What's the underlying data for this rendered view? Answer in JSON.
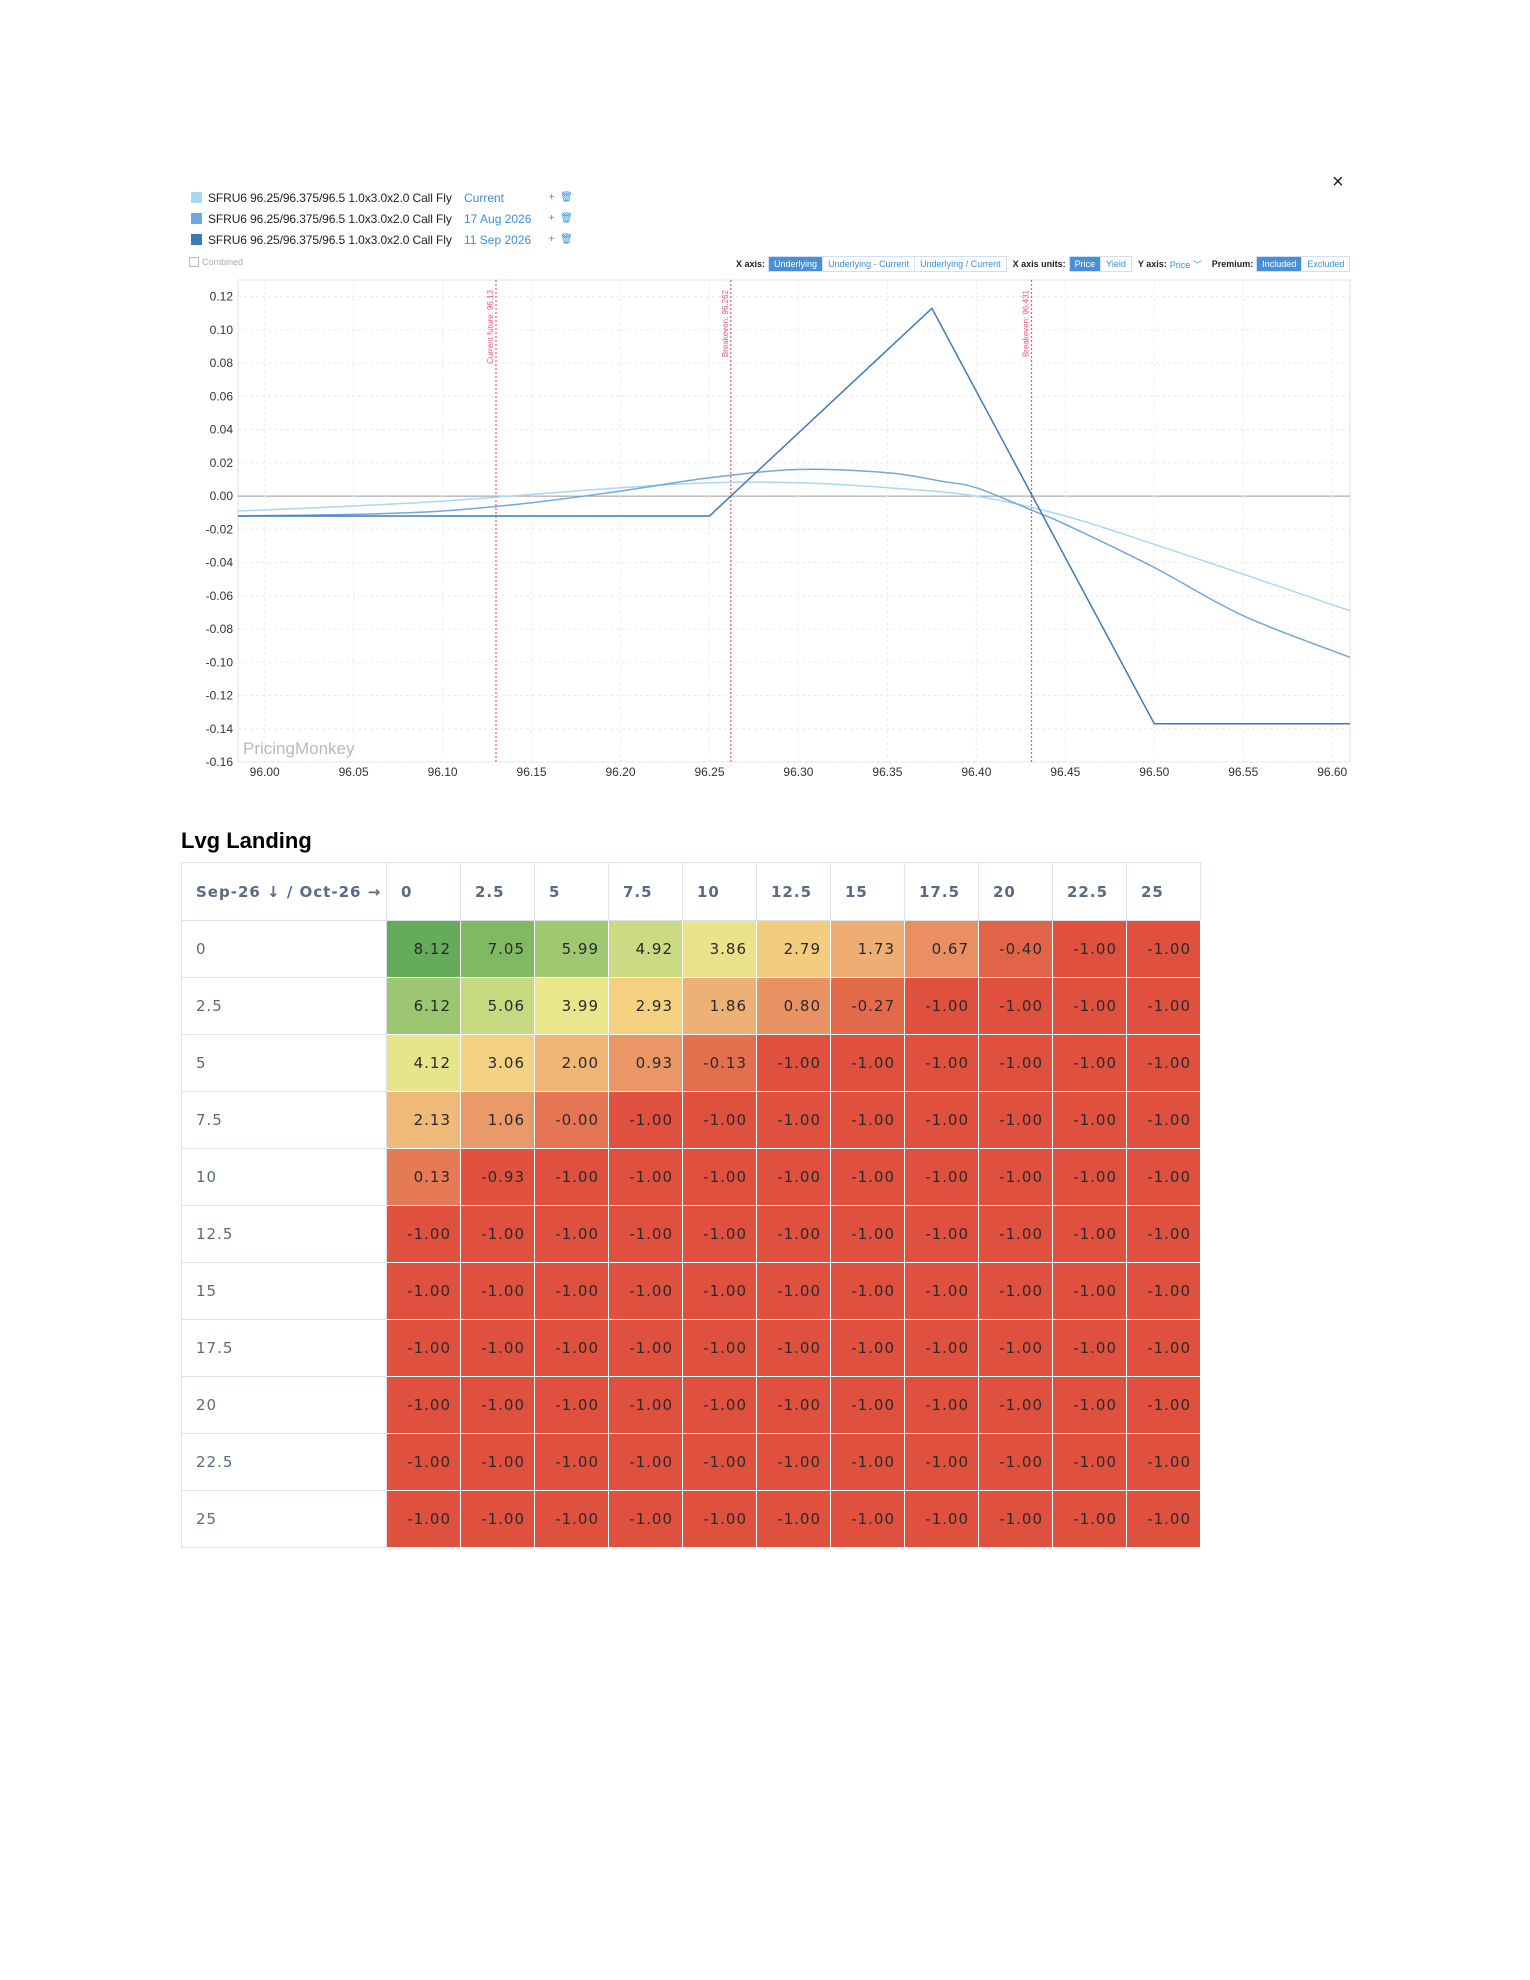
{
  "legend": [
    {
      "label": "SFRU6 96.25/96.375/96.5 1.0x3.0x2.0 Call Fly",
      "date": "Current",
      "color": "#a8d8f2"
    },
    {
      "label": "SFRU6 96.25/96.375/96.5 1.0x3.0x2.0 Call Fly",
      "date": "17 Aug 2026",
      "color": "#6fa8dc"
    },
    {
      "label": "SFRU6 96.25/96.375/96.5 1.0x3.0x2.0 Call Fly",
      "date": "11 Sep 2026",
      "color": "#3d7ab8"
    }
  ],
  "legend_actions": {
    "add": "+",
    "delete": "🗑"
  },
  "combined_label": "Combined",
  "close_icon": "×",
  "toolbar": {
    "x_axis_label": "X axis:",
    "x_axis_options": [
      "Underlying",
      "Underlying - Current",
      "Underlying / Current"
    ],
    "x_axis_units_label": "X axis units:",
    "x_axis_units_options": [
      "Price",
      "Yield"
    ],
    "y_axis_label": "Y axis:",
    "y_axis_value": "Price",
    "premium_label": "Premium:",
    "premium_options": [
      "Included",
      "Excluded"
    ]
  },
  "watermark": "PricingMonkey",
  "chart_data": {
    "type": "line",
    "xlim": [
      95.985,
      96.61
    ],
    "ylim": [
      -0.16,
      0.13
    ],
    "x_ticks": [
      "96.00",
      "96.05",
      "96.10",
      "96.15",
      "96.20",
      "96.25",
      "96.30",
      "96.35",
      "96.40",
      "96.45",
      "96.50",
      "96.55",
      "96.60"
    ],
    "y_ticks": [
      "0.12",
      "0.10",
      "0.08",
      "0.06",
      "0.04",
      "0.02",
      "0.00",
      "-0.02",
      "-0.04",
      "-0.06",
      "-0.08",
      "-0.10",
      "-0.12",
      "-0.14",
      "-0.16"
    ],
    "grid": true,
    "markers": [
      {
        "label": "Current future: 96.13",
        "x": 96.13
      },
      {
        "label": "Breakeven: 96.262",
        "x": 96.262
      },
      {
        "label": "Breakeven: 96.431",
        "x": 96.431
      }
    ],
    "series": [
      {
        "name": "Current",
        "color": "#a8d8f2",
        "x": [
          95.985,
          96.05,
          96.1,
          96.15,
          96.2,
          96.25,
          96.3,
          96.35,
          96.4,
          96.45,
          96.5,
          96.55,
          96.61
        ],
        "y": [
          -0.009,
          -0.006,
          -0.003,
          0.001,
          0.005,
          0.008,
          0.008,
          0.005,
          0.0,
          -0.012,
          -0.029,
          -0.047,
          -0.069
        ]
      },
      {
        "name": "17 Aug 2026",
        "color": "#6fa8dc",
        "x": [
          95.985,
          96.05,
          96.1,
          96.15,
          96.2,
          96.25,
          96.3,
          96.35,
          96.38,
          96.4,
          96.43,
          96.45,
          96.5,
          96.55,
          96.61
        ],
        "y": [
          -0.012,
          -0.011,
          -0.009,
          -0.004,
          0.003,
          0.011,
          0.016,
          0.014,
          0.009,
          0.005,
          -0.008,
          -0.017,
          -0.043,
          -0.072,
          -0.097
        ]
      },
      {
        "name": "11 Sep 2026",
        "color": "#3d7ab8",
        "x": [
          95.985,
          96.25,
          96.375,
          96.5,
          96.61
        ],
        "y": [
          -0.012,
          -0.012,
          0.113,
          -0.137,
          -0.137
        ]
      }
    ]
  },
  "table": {
    "title": "Lvg Landing",
    "corner": "Sep-26 ↓ / Oct-26 →",
    "columns": [
      "0",
      "2.5",
      "5",
      "7.5",
      "10",
      "12.5",
      "15",
      "17.5",
      "20",
      "22.5",
      "25"
    ],
    "rows": [
      {
        "label": "0",
        "values": [
          "8.12",
          "7.05",
          "5.99",
          "4.92",
          "3.86",
          "2.79",
          "1.73",
          "0.67",
          "-0.40",
          "-1.00",
          "-1.00"
        ]
      },
      {
        "label": "2.5",
        "values": [
          "6.12",
          "5.06",
          "3.99",
          "2.93",
          "1.86",
          "0.80",
          "-0.27",
          "-1.00",
          "-1.00",
          "-1.00",
          "-1.00"
        ]
      },
      {
        "label": "5",
        "values": [
          "4.12",
          "3.06",
          "2.00",
          "0.93",
          "-0.13",
          "-1.00",
          "-1.00",
          "-1.00",
          "-1.00",
          "-1.00",
          "-1.00"
        ]
      },
      {
        "label": "7.5",
        "values": [
          "2.13",
          "1.06",
          "-0.00",
          "-1.00",
          "-1.00",
          "-1.00",
          "-1.00",
          "-1.00",
          "-1.00",
          "-1.00",
          "-1.00"
        ]
      },
      {
        "label": "10",
        "values": [
          "0.13",
          "-0.93",
          "-1.00",
          "-1.00",
          "-1.00",
          "-1.00",
          "-1.00",
          "-1.00",
          "-1.00",
          "-1.00",
          "-1.00"
        ]
      },
      {
        "label": "12.5",
        "values": [
          "-1.00",
          "-1.00",
          "-1.00",
          "-1.00",
          "-1.00",
          "-1.00",
          "-1.00",
          "-1.00",
          "-1.00",
          "-1.00",
          "-1.00"
        ]
      },
      {
        "label": "15",
        "values": [
          "-1.00",
          "-1.00",
          "-1.00",
          "-1.00",
          "-1.00",
          "-1.00",
          "-1.00",
          "-1.00",
          "-1.00",
          "-1.00",
          "-1.00"
        ]
      },
      {
        "label": "17.5",
        "values": [
          "-1.00",
          "-1.00",
          "-1.00",
          "-1.00",
          "-1.00",
          "-1.00",
          "-1.00",
          "-1.00",
          "-1.00",
          "-1.00",
          "-1.00"
        ]
      },
      {
        "label": "20",
        "values": [
          "-1.00",
          "-1.00",
          "-1.00",
          "-1.00",
          "-1.00",
          "-1.00",
          "-1.00",
          "-1.00",
          "-1.00",
          "-1.00",
          "-1.00"
        ]
      },
      {
        "label": "22.5",
        "values": [
          "-1.00",
          "-1.00",
          "-1.00",
          "-1.00",
          "-1.00",
          "-1.00",
          "-1.00",
          "-1.00",
          "-1.00",
          "-1.00",
          "-1.00"
        ]
      },
      {
        "label": "25",
        "values": [
          "-1.00",
          "-1.00",
          "-1.00",
          "-1.00",
          "-1.00",
          "-1.00",
          "-1.00",
          "-1.00",
          "-1.00",
          "-1.00",
          "-1.00"
        ]
      }
    ]
  }
}
